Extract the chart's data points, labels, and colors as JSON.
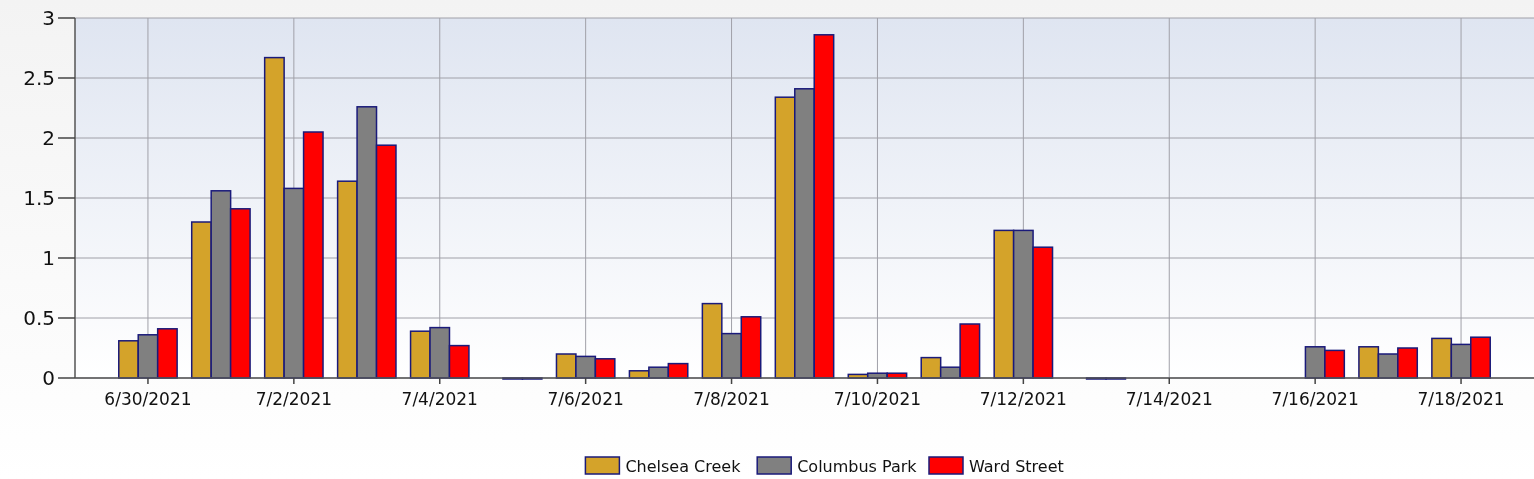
{
  "chart_data": {
    "type": "bar",
    "categories": [
      "6/30/2021",
      null,
      "7/2/2021",
      null,
      "7/4/2021",
      null,
      "7/6/2021",
      null,
      "7/8/2021",
      null,
      "7/10/2021",
      null,
      "7/12/2021",
      null,
      "7/14/2021",
      null,
      "7/16/2021",
      null,
      "7/18/2021"
    ],
    "series": [
      {
        "name": "Chelsea Creek",
        "color": "#d4a32a",
        "values": [
          0.31,
          1.3,
          2.67,
          1.64,
          0.39,
          null,
          0.2,
          0.06,
          0.62,
          2.34,
          0.03,
          0.17,
          1.23,
          null,
          null,
          null,
          null,
          0.26,
          0.33
        ]
      },
      {
        "name": "Columbus Park",
        "color": "#808080",
        "values": [
          0.36,
          1.56,
          1.58,
          2.26,
          0.42,
          0,
          0.18,
          0.09,
          0.37,
          2.41,
          0.04,
          0.09,
          1.23,
          0,
          null,
          null,
          0.26,
          0.2,
          0.28
        ]
      },
      {
        "name": "Ward Street",
        "color": "#ff0000",
        "values": [
          0.41,
          1.41,
          2.05,
          1.94,
          0.27,
          0,
          0.16,
          0.12,
          0.51,
          2.86,
          0.04,
          0.45,
          1.09,
          0,
          null,
          null,
          0.23,
          0.25,
          0.34
        ]
      }
    ],
    "ylim": [
      0,
      3
    ],
    "yticks": [
      0,
      0.5,
      1,
      1.5,
      2,
      2.5,
      3
    ],
    "grid": true,
    "legend": "bottom"
  }
}
